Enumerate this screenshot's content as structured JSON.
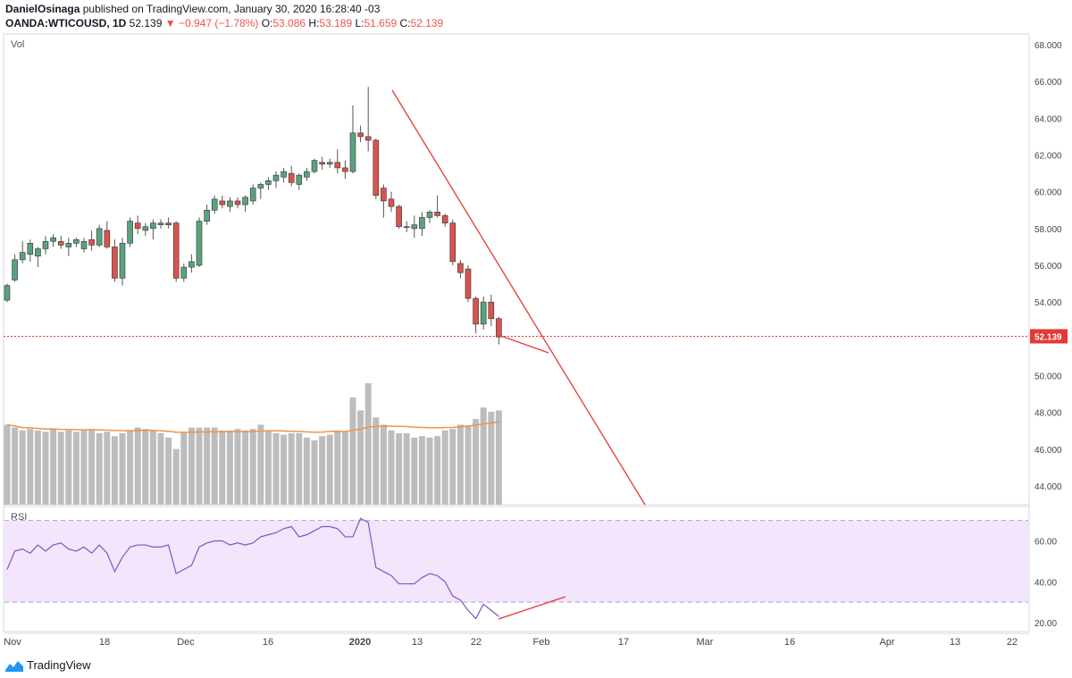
{
  "header": {
    "author": "DanielOsinaga",
    "published_text": "published on TradingView.com, January 30, 2020 16:28:40 -03",
    "symbol": "OANDA:WTICOUSD, 1D",
    "last": "52.139",
    "change": "−0.947 (−1.78%)",
    "o_label": "O:",
    "o_value": "53.086",
    "h_label": "H:",
    "h_value": "53.189",
    "l_label": "L:",
    "l_value": "51.659",
    "c_label": "C:",
    "c_value": "52.139"
  },
  "footer": {
    "brand": "TradingView"
  },
  "colors": {
    "up": "#5aa27e",
    "down": "#d9534f",
    "volume": "#bdbdbd",
    "volume_ma": "#f0924b",
    "trendline": "#e53935",
    "rsi_line": "#7e57c2",
    "rsi_band": "#f3e5fc",
    "price_line": "#e53935",
    "price_label_bg": "#e53935"
  },
  "chart_data": [
    {
      "type": "candlestick",
      "title": "OANDA:WTICOUSD, 1D",
      "pane_label": "Vol",
      "ylim": [
        43.0,
        69.0
      ],
      "y_ticks": [
        "44.000",
        "46.000",
        "48.000",
        "50.000",
        "52.000",
        "54.000",
        "56.000",
        "58.000",
        "60.000",
        "62.000",
        "64.000",
        "66.000",
        "68.000"
      ],
      "last_price_label": "52.139",
      "x_tick_labels": [
        "Nov",
        "18",
        "Dec",
        "16",
        "2020",
        "13",
        "22",
        "Feb",
        "17",
        "Mar",
        "16",
        "Apr",
        "13",
        "22"
      ],
      "candles": [
        {
          "o": 54.1,
          "h": 55.0,
          "l": 54.0,
          "c": 54.9
        },
        {
          "o": 55.2,
          "h": 56.6,
          "l": 55.1,
          "c": 56.3
        },
        {
          "o": 56.3,
          "h": 57.3,
          "l": 56.1,
          "c": 56.7
        },
        {
          "o": 56.6,
          "h": 57.4,
          "l": 56.2,
          "c": 57.2
        },
        {
          "o": 56.5,
          "h": 57.0,
          "l": 55.9,
          "c": 56.9
        },
        {
          "o": 56.9,
          "h": 57.6,
          "l": 56.6,
          "c": 57.3
        },
        {
          "o": 57.3,
          "h": 57.7,
          "l": 57.0,
          "c": 57.5
        },
        {
          "o": 57.3,
          "h": 57.6,
          "l": 56.9,
          "c": 57.1
        },
        {
          "o": 57.0,
          "h": 57.5,
          "l": 56.5,
          "c": 57.2
        },
        {
          "o": 57.2,
          "h": 57.5,
          "l": 57.0,
          "c": 57.4
        },
        {
          "o": 56.9,
          "h": 57.5,
          "l": 56.7,
          "c": 57.3
        },
        {
          "o": 57.4,
          "h": 57.9,
          "l": 56.8,
          "c": 57.1
        },
        {
          "o": 57.1,
          "h": 58.2,
          "l": 57.0,
          "c": 58.0
        },
        {
          "o": 57.9,
          "h": 58.4,
          "l": 56.9,
          "c": 57.0
        },
        {
          "o": 57.0,
          "h": 57.4,
          "l": 55.1,
          "c": 55.3
        },
        {
          "o": 55.3,
          "h": 57.5,
          "l": 54.9,
          "c": 57.2
        },
        {
          "o": 57.2,
          "h": 58.6,
          "l": 57.0,
          "c": 58.4
        },
        {
          "o": 58.3,
          "h": 58.7,
          "l": 57.7,
          "c": 58.0
        },
        {
          "o": 57.9,
          "h": 58.3,
          "l": 57.6,
          "c": 58.1
        },
        {
          "o": 58.0,
          "h": 58.5,
          "l": 57.4,
          "c": 58.3
        },
        {
          "o": 58.2,
          "h": 58.5,
          "l": 58.0,
          "c": 58.3
        },
        {
          "o": 58.3,
          "h": 58.6,
          "l": 58.0,
          "c": 58.2
        },
        {
          "o": 58.3,
          "h": 58.4,
          "l": 55.1,
          "c": 55.3
        },
        {
          "o": 55.3,
          "h": 56.1,
          "l": 55.1,
          "c": 55.9
        },
        {
          "o": 55.9,
          "h": 56.6,
          "l": 55.6,
          "c": 56.2
        },
        {
          "o": 56.0,
          "h": 58.6,
          "l": 55.9,
          "c": 58.4
        },
        {
          "o": 58.4,
          "h": 59.3,
          "l": 58.2,
          "c": 59.0
        },
        {
          "o": 59.0,
          "h": 59.8,
          "l": 58.8,
          "c": 59.6
        },
        {
          "o": 59.5,
          "h": 59.8,
          "l": 59.1,
          "c": 59.3
        },
        {
          "o": 59.2,
          "h": 59.7,
          "l": 58.9,
          "c": 59.5
        },
        {
          "o": 59.5,
          "h": 59.7,
          "l": 59.1,
          "c": 59.3
        },
        {
          "o": 59.3,
          "h": 59.8,
          "l": 58.9,
          "c": 59.7
        },
        {
          "o": 59.5,
          "h": 60.4,
          "l": 59.3,
          "c": 60.2
        },
        {
          "o": 60.2,
          "h": 60.5,
          "l": 59.6,
          "c": 60.4
        },
        {
          "o": 60.4,
          "h": 60.8,
          "l": 60.1,
          "c": 60.6
        },
        {
          "o": 60.6,
          "h": 61.1,
          "l": 60.2,
          "c": 60.9
        },
        {
          "o": 60.8,
          "h": 61.3,
          "l": 60.5,
          "c": 61.1
        },
        {
          "o": 61.0,
          "h": 61.4,
          "l": 60.3,
          "c": 60.5
        },
        {
          "o": 60.4,
          "h": 61.0,
          "l": 60.1,
          "c": 60.9
        },
        {
          "o": 60.8,
          "h": 61.3,
          "l": 60.6,
          "c": 61.1
        },
        {
          "o": 61.1,
          "h": 61.8,
          "l": 61.0,
          "c": 61.7
        },
        {
          "o": 61.6,
          "h": 61.9,
          "l": 61.2,
          "c": 61.5
        },
        {
          "o": 61.5,
          "h": 61.8,
          "l": 61.3,
          "c": 61.6
        },
        {
          "o": 61.6,
          "h": 62.3,
          "l": 61.0,
          "c": 61.3
        },
        {
          "o": 61.3,
          "h": 61.7,
          "l": 60.7,
          "c": 61.1
        },
        {
          "o": 61.1,
          "h": 64.7,
          "l": 61.0,
          "c": 63.2
        },
        {
          "o": 63.2,
          "h": 63.6,
          "l": 62.7,
          "c": 63.0
        },
        {
          "o": 63.0,
          "h": 65.7,
          "l": 62.2,
          "c": 62.8
        },
        {
          "o": 62.8,
          "h": 62.9,
          "l": 59.6,
          "c": 59.8
        },
        {
          "o": 60.2,
          "h": 60.4,
          "l": 58.6,
          "c": 59.5
        },
        {
          "o": 59.6,
          "h": 60.0,
          "l": 58.9,
          "c": 59.2
        },
        {
          "o": 59.2,
          "h": 59.3,
          "l": 58.0,
          "c": 58.1
        },
        {
          "o": 58.1,
          "h": 58.4,
          "l": 57.8,
          "c": 58.1
        },
        {
          "o": 58.0,
          "h": 58.7,
          "l": 57.5,
          "c": 58.2
        },
        {
          "o": 58.0,
          "h": 58.9,
          "l": 57.6,
          "c": 58.6
        },
        {
          "o": 58.6,
          "h": 59.0,
          "l": 58.3,
          "c": 58.9
        },
        {
          "o": 58.9,
          "h": 59.8,
          "l": 58.6,
          "c": 58.7
        },
        {
          "o": 58.7,
          "h": 58.8,
          "l": 58.1,
          "c": 58.3
        },
        {
          "o": 58.3,
          "h": 58.5,
          "l": 56.0,
          "c": 56.2
        },
        {
          "o": 56.1,
          "h": 56.3,
          "l": 55.3,
          "c": 55.6
        },
        {
          "o": 55.8,
          "h": 56.0,
          "l": 54.0,
          "c": 54.2
        },
        {
          "o": 54.2,
          "h": 54.3,
          "l": 52.3,
          "c": 52.8
        },
        {
          "o": 52.8,
          "h": 54.3,
          "l": 52.5,
          "c": 54.0
        },
        {
          "o": 54.0,
          "h": 54.4,
          "l": 52.7,
          "c": 53.1
        },
        {
          "o": 53.1,
          "h": 53.2,
          "l": 51.7,
          "c": 52.1
        }
      ],
      "volume": [
        56,
        54,
        52,
        53,
        52,
        51,
        53,
        51,
        52,
        51,
        52,
        53,
        50,
        51,
        48,
        50,
        52,
        54,
        53,
        52,
        50,
        47,
        39,
        51,
        54,
        54,
        54,
        54,
        52,
        52,
        53,
        52,
        53,
        56,
        52,
        50,
        49,
        50,
        50,
        47,
        45,
        48,
        49,
        52,
        51,
        75,
        66,
        85,
        61,
        56,
        52,
        50,
        50,
        47,
        48,
        47,
        48,
        52,
        53,
        56,
        55,
        60,
        68,
        65,
        66
      ]
    },
    {
      "type": "line",
      "title": "RSI",
      "ylim": [
        15,
        75
      ],
      "y_ticks": [
        "20.00",
        "40.00",
        "60.00"
      ],
      "bands": [
        30,
        70
      ],
      "values": [
        46,
        55,
        56,
        54,
        58,
        55,
        58,
        59,
        56,
        55,
        57,
        54,
        58,
        54,
        45,
        52,
        57,
        58,
        58,
        57,
        57,
        58,
        44,
        46,
        48,
        57,
        59,
        60,
        60,
        58,
        59,
        58,
        59,
        62,
        63,
        64,
        66,
        67,
        62,
        63,
        65,
        67,
        67,
        66,
        62,
        62,
        71,
        69,
        47,
        45,
        43,
        39,
        39,
        39,
        42,
        44,
        43,
        40,
        33,
        31,
        26,
        22,
        29,
        26,
        23
      ]
    }
  ]
}
